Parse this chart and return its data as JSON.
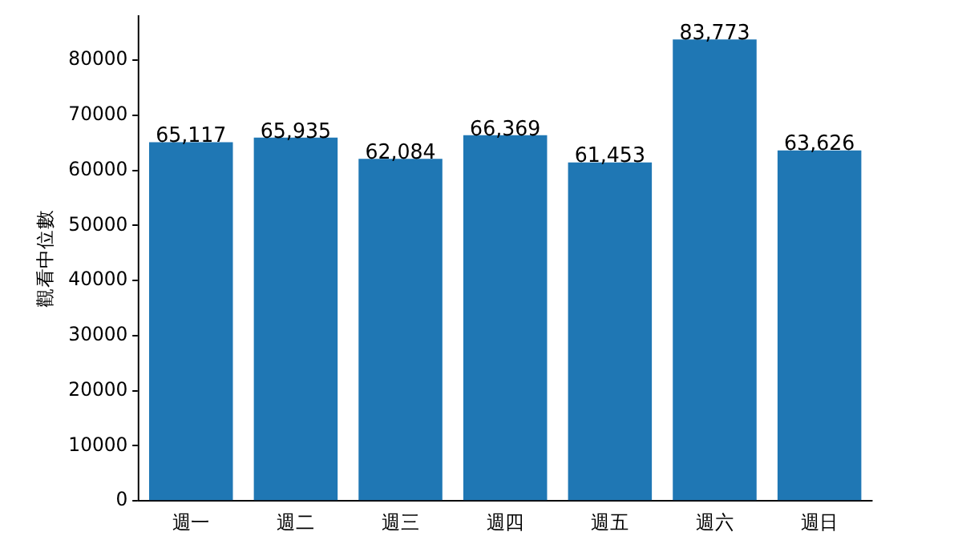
{
  "chart_data": {
    "type": "bar",
    "ylabel": "觀看中位數",
    "categories": [
      "週一",
      "週二",
      "週三",
      "週四",
      "週五",
      "週六",
      "週日"
    ],
    "values": [
      65117,
      65935,
      62084,
      66369,
      61453,
      83773,
      63626
    ],
    "value_labels": [
      "65,117",
      "65,935",
      "62,084",
      "66,369",
      "61,453",
      "83,773",
      "63,626"
    ],
    "color": "#1f77b4",
    "ylim": [
      0,
      87962
    ],
    "yticks": [
      0,
      10000,
      20000,
      30000,
      40000,
      50000,
      60000,
      70000,
      80000
    ],
    "grid": false,
    "legend": false
  }
}
